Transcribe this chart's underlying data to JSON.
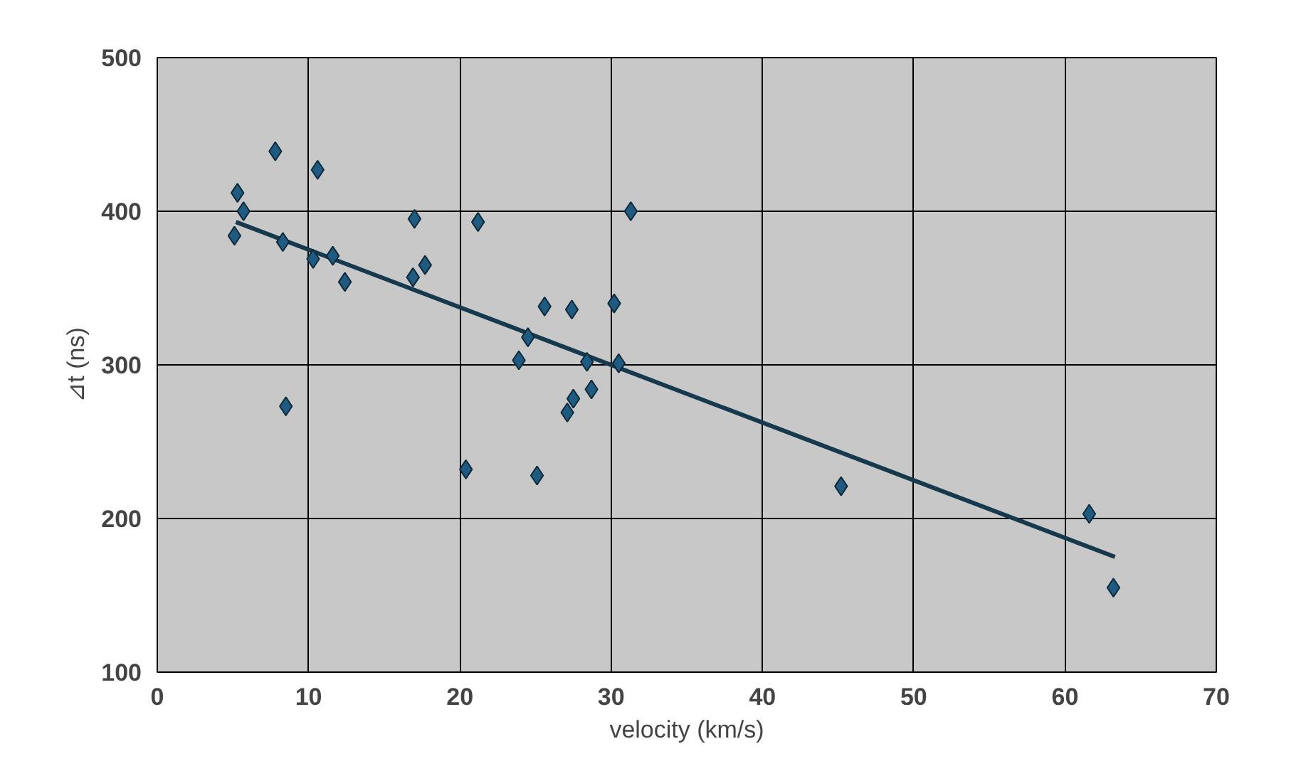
{
  "chart_data": {
    "type": "scatter",
    "xlabel": "velocity (km/s)",
    "ylabel": "⊿t (ns)",
    "xlim": [
      0,
      70
    ],
    "ylim": [
      100,
      500
    ],
    "xticks": [
      0,
      10,
      20,
      30,
      40,
      50,
      60,
      70
    ],
    "yticks": [
      100,
      200,
      300,
      400,
      500
    ],
    "grid": true,
    "series": [
      {
        "marker": "diamond",
        "color": "#1f5a80",
        "x": [
          7.8,
          10.6,
          5.3,
          5.7,
          5.1,
          8.3,
          10.3,
          11.6,
          12.4,
          17.0,
          21.2,
          31.3,
          16.9,
          17.7,
          25.6,
          27.4,
          30.2,
          24.5,
          23.9,
          28.4,
          30.5,
          8.5,
          28.7,
          27.5,
          27.1,
          20.4,
          25.1,
          45.2,
          61.6,
          63.2
        ],
        "values": [
          439,
          427,
          412,
          400,
          384,
          380,
          369,
          371,
          354,
          395,
          393,
          400,
          357,
          365,
          338,
          336,
          340,
          318,
          303,
          302,
          301,
          273,
          284,
          278,
          269,
          232,
          228,
          221,
          203,
          155
        ]
      },
      {
        "type": "line",
        "color": "#17394d",
        "line_style": "solid",
        "x": [
          5.2,
          63.3
        ],
        "values": [
          393,
          175
        ]
      }
    ]
  }
}
